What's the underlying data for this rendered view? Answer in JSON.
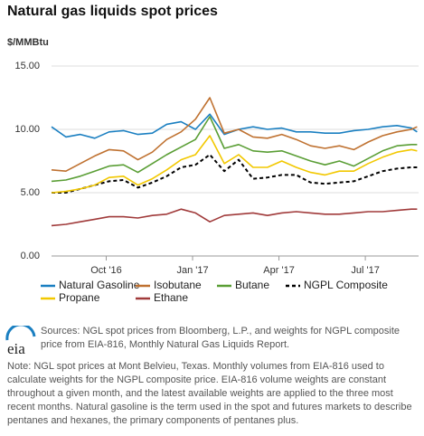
{
  "chart_data": {
    "type": "line",
    "title": "Natural gas liquids spot prices",
    "y_label": "$/MMBtu",
    "x": [
      8.1,
      8.6,
      9.1,
      9.6,
      10.1,
      10.6,
      11.1,
      11.6,
      12.1,
      12.6,
      13.1,
      13.6,
      14.1,
      14.6,
      15.1,
      15.6,
      16.1,
      16.6,
      17.1,
      17.6,
      18.1,
      18.6,
      19.1,
      19.6,
      20.1,
      20.6,
      20.8
    ],
    "xlim": [
      8.1,
      20.85
    ],
    "xticks": [
      {
        "value": 10,
        "label": "Oct '16"
      },
      {
        "value": 13,
        "label": "Jan '17"
      },
      {
        "value": 16,
        "label": "Apr '17"
      },
      {
        "value": 19,
        "label": "Jul '17"
      }
    ],
    "ylim": [
      0,
      15
    ],
    "yticks": [
      {
        "value": 0,
        "label": "0.00"
      },
      {
        "value": 5,
        "label": "5.00"
      },
      {
        "value": 10,
        "label": "10.00"
      },
      {
        "value": 15,
        "label": "15.00"
      }
    ],
    "grid": true,
    "series": [
      {
        "name": "Natural Gasoline",
        "color": "#1a7fc1",
        "dashed": false,
        "values": [
          10.2,
          9.4,
          9.6,
          9.3,
          9.8,
          9.9,
          9.6,
          9.7,
          10.4,
          10.6,
          10.0,
          11.2,
          9.6,
          10.0,
          10.2,
          10.0,
          10.1,
          9.8,
          9.8,
          9.7,
          9.7,
          9.9,
          10.0,
          10.2,
          10.3,
          10.1,
          9.8
        ]
      },
      {
        "name": "Isobutane",
        "color": "#bf7130",
        "dashed": false,
        "values": [
          6.8,
          6.7,
          7.3,
          7.9,
          8.4,
          8.3,
          7.6,
          8.2,
          9.2,
          9.8,
          10.8,
          12.5,
          9.7,
          10.0,
          9.4,
          9.3,
          9.6,
          9.2,
          8.7,
          8.5,
          8.7,
          8.4,
          9.0,
          9.5,
          9.8,
          10.0,
          10.2
        ]
      },
      {
        "name": "Butane",
        "color": "#5a9e35",
        "dashed": false,
        "values": [
          5.9,
          6.0,
          6.3,
          6.7,
          7.1,
          7.2,
          6.6,
          7.3,
          8.0,
          8.6,
          9.2,
          11.0,
          8.5,
          8.8,
          8.3,
          8.2,
          8.3,
          7.9,
          7.5,
          7.2,
          7.5,
          7.1,
          7.7,
          8.3,
          8.7,
          8.8,
          8.8
        ]
      },
      {
        "name": "NGPL Composite",
        "color": "#000000",
        "dashed": true,
        "values": [
          5.0,
          5.0,
          5.3,
          5.6,
          5.9,
          6.0,
          5.4,
          5.8,
          6.3,
          7.0,
          7.2,
          8.0,
          6.7,
          7.6,
          6.1,
          6.2,
          6.4,
          6.4,
          5.8,
          5.7,
          5.8,
          5.9,
          6.3,
          6.7,
          6.9,
          7.0,
          7.0
        ]
      },
      {
        "name": "Propane",
        "color": "#f2c800",
        "dashed": false,
        "values": [
          5.0,
          5.1,
          5.3,
          5.6,
          6.2,
          6.3,
          5.6,
          6.1,
          6.8,
          7.6,
          8.0,
          9.5,
          7.3,
          8.0,
          7.0,
          7.0,
          7.5,
          7.0,
          6.6,
          6.4,
          6.7,
          6.7,
          7.3,
          7.8,
          8.2,
          8.4,
          8.3
        ]
      },
      {
        "name": "Ethane",
        "color": "#a03a3a",
        "dashed": false,
        "values": [
          2.4,
          2.5,
          2.7,
          2.9,
          3.1,
          3.1,
          3.0,
          3.2,
          3.3,
          3.7,
          3.4,
          2.7,
          3.2,
          3.3,
          3.4,
          3.2,
          3.4,
          3.5,
          3.4,
          3.3,
          3.3,
          3.4,
          3.5,
          3.5,
          3.6,
          3.7,
          3.7
        ]
      }
    ]
  },
  "logo": "eia",
  "source": "Sources: NGL spot prices from Bloomberg, L.P., and weights for NGPL composite price from EIA-816, Monthly Natural Gas Liquids Report.",
  "note": "Note: NGL spot prices at Mont Belvieu, Texas. Monthly volumes from EIA-816 used to calculate weights for the NGPL composite price. EIA-816 volume weights are constant throughout a given month, and the latest available weights are applied to the three most recent months. Natural gasoline is the term used in the spot and futures markets to describe pentanes and hexanes, the primary components of pentanes plus."
}
